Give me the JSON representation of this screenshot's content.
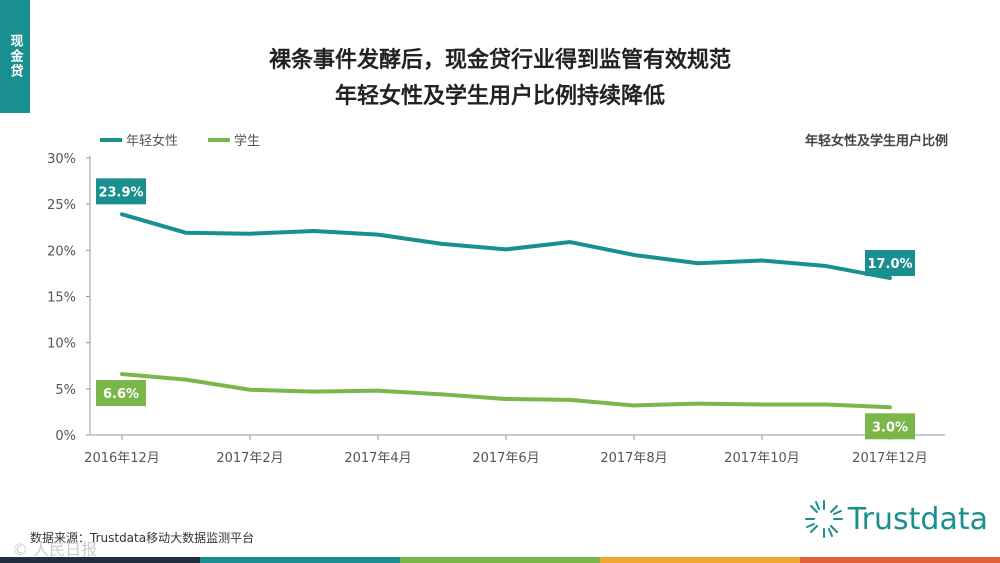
{
  "side_tab": "现金贷",
  "title_line1": "裸条事件发酵后，现金贷行业得到监管有效规范",
  "title_line2": "年轻女性及学生用户比例持续降低",
  "right_note": "年轻女性及学生用户比例",
  "source": "数据来源：Trustdata移动大数据监测平台",
  "logo_text": "Trustdata",
  "watermark": "© 人民日报",
  "colors": {
    "teal": "#1a8f8f",
    "green": "#7ab648",
    "axis": "#999999"
  },
  "bottom_bar_colors": [
    "#1f2d3d",
    "#1a8f8f",
    "#7ab648",
    "#f0a830",
    "#e0603a"
  ],
  "chart_data": {
    "type": "line",
    "x": [
      "2016年12月",
      "2017年1月",
      "2017年2月",
      "2017年3月",
      "2017年4月",
      "2017年5月",
      "2017年6月",
      "2017年7月",
      "2017年8月",
      "2017年9月",
      "2017年10月",
      "2017年11月",
      "2017年12月"
    ],
    "x_tick_labels": [
      "2016年12月",
      "2017年2月",
      "2017年4月",
      "2017年6月",
      "2017年8月",
      "2017年10月",
      "2017年12月"
    ],
    "y_tick_labels": [
      "0%",
      "5%",
      "10%",
      "15%",
      "20%",
      "25%",
      "30%"
    ],
    "ylim": [
      0,
      30
    ],
    "series": [
      {
        "name": "年轻女性",
        "color": "#1a8f8f",
        "values": [
          23.9,
          21.9,
          21.8,
          22.1,
          21.7,
          20.7,
          20.1,
          20.9,
          19.5,
          18.6,
          18.9,
          18.3,
          17.0
        ],
        "labels": {
          "0": "23.9%",
          "12": "17.0%"
        }
      },
      {
        "name": "学生",
        "color": "#7ab648",
        "values": [
          6.6,
          6.0,
          4.9,
          4.7,
          4.8,
          4.4,
          3.9,
          3.8,
          3.2,
          3.4,
          3.3,
          3.3,
          3.0
        ],
        "labels": {
          "0": "6.6%",
          "12": "3.0%"
        }
      }
    ]
  }
}
